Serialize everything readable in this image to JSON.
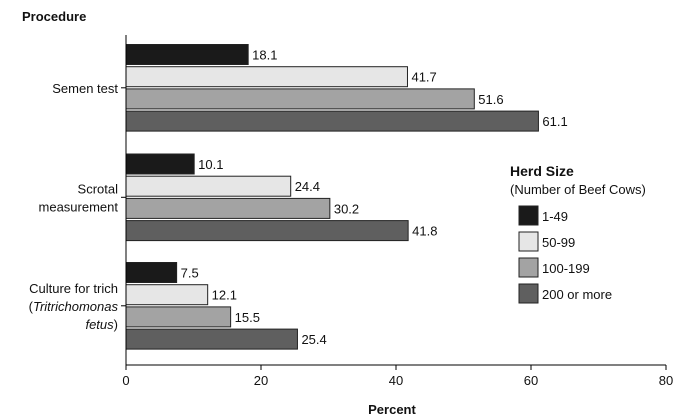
{
  "chart_data": {
    "type": "bar",
    "orientation": "horizontal",
    "ylabel": "Procedure",
    "xlabel": "Percent",
    "xlim": [
      0,
      80
    ],
    "xticks": [
      0,
      20,
      40,
      60,
      80
    ],
    "categories": [
      {
        "lines": [
          {
            "text": "Semen test",
            "italic": false
          }
        ]
      },
      {
        "lines": [
          {
            "text": "Scrotal",
            "italic": false
          },
          {
            "text": "measurement",
            "italic": false
          }
        ]
      },
      {
        "lines": [
          {
            "parts": [
              {
                "text": "Culture for trich",
                "italic": false
              }
            ]
          },
          {
            "parts": [
              {
                "text": "(",
                "italic": false
              },
              {
                "text": "Tritrichomonas",
                "italic": true
              }
            ]
          },
          {
            "parts": [
              {
                "text": "fetus",
                "italic": true
              },
              {
                "text": ")",
                "italic": false
              }
            ]
          }
        ]
      }
    ],
    "series": [
      {
        "name": "1-49",
        "color": "#1a1a1a",
        "values": [
          18.1,
          10.1,
          7.5
        ]
      },
      {
        "name": "50-99",
        "color": "#e6e6e6",
        "values": [
          41.7,
          24.4,
          12.1
        ]
      },
      {
        "name": "100-199",
        "color": "#a3a3a3",
        "values": [
          51.6,
          30.2,
          15.5
        ]
      },
      {
        "name": "200 or more",
        "color": "#5f5f5f",
        "values": [
          61.1,
          41.8,
          25.4
        ]
      }
    ],
    "legend": {
      "title": "Herd Size",
      "subtitle": "(Number of Beef Cows)",
      "placement": "right"
    },
    "grid": false
  }
}
